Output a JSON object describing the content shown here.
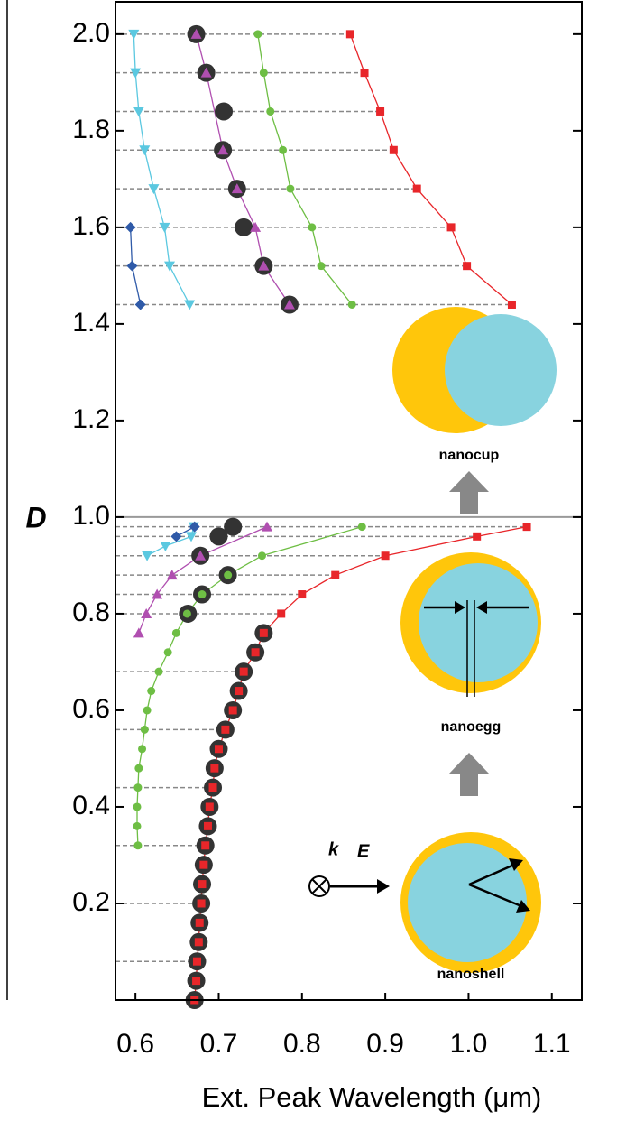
{
  "chart_data": {
    "type": "scatter-line",
    "y_label": "D",
    "x_label": "Ext. Peak Wavelength (μm)",
    "xlim": [
      0.576,
      1.136
    ],
    "ylim": [
      0,
      2.067
    ],
    "xticks": [
      0.6,
      0.7,
      0.8,
      0.9,
      {
        "value": 1,
        "label": "1.0"
      },
      1.1
    ],
    "yticks": [
      0.2,
      0.4,
      0.6,
      0.8,
      {
        "value": 1,
        "label": "1.0"
      },
      1.2,
      1.4,
      1.6,
      1.8,
      {
        "value": 2,
        "label": "2.0"
      }
    ],
    "series": [
      {
        "color": "#333333",
        "marker": "big-circle",
        "line": false,
        "x": [
          0.671,
          0.673,
          0.674,
          0.676,
          0.677,
          0.679,
          0.68,
          0.682,
          0.684,
          0.687,
          0.689,
          0.693,
          0.695,
          0.7,
          0.708,
          0.717,
          0.724,
          0.73,
          0.744,
          0.754,
          0.663,
          0.68,
          0.711,
          0.678,
          0.7,
          0.717,
          null,
          0.785,
          0.754,
          0.73,
          0.722,
          0.705,
          0.706,
          0.685,
          0.673
        ],
        "values": [
          0,
          0.04,
          0.08,
          0.12,
          0.16,
          0.2,
          0.24,
          0.28,
          0.32,
          0.36,
          0.4,
          0.44,
          0.48,
          0.52,
          0.56,
          0.6,
          0.64,
          0.68,
          0.72,
          0.76,
          0.8,
          0.84,
          0.88,
          0.92,
          0.96,
          0.98,
          null,
          1.44,
          1.52,
          1.6,
          1.68,
          1.76,
          1.84,
          1.92,
          2.0
        ]
      },
      {
        "color": "#e8262a",
        "marker": "square",
        "line": true,
        "x": [
          0.671,
          0.673,
          0.674,
          0.676,
          0.677,
          0.679,
          0.68,
          0.682,
          0.684,
          0.687,
          0.689,
          0.693,
          0.695,
          0.7,
          0.708,
          0.717,
          0.724,
          0.73,
          0.744,
          0.754,
          0.775,
          0.8,
          0.84,
          0.9,
          1.01,
          1.07,
          null,
          1.052,
          0.998,
          0.979,
          0.938,
          0.91,
          0.894,
          0.875,
          0.858
        ],
        "values": [
          0,
          0.04,
          0.08,
          0.12,
          0.16,
          0.2,
          0.24,
          0.28,
          0.32,
          0.36,
          0.4,
          0.44,
          0.48,
          0.52,
          0.56,
          0.6,
          0.64,
          0.68,
          0.72,
          0.76,
          0.8,
          0.84,
          0.88,
          0.92,
          0.96,
          0.98,
          null,
          1.44,
          1.52,
          1.6,
          1.68,
          1.76,
          1.84,
          1.92,
          2.0
        ]
      },
      {
        "color": "#6ebe44",
        "marker": "circle",
        "line": true,
        "x": [
          0.603,
          0.602,
          0.602,
          0.603,
          0.604,
          0.608,
          0.611,
          0.614,
          0.619,
          0.628,
          0.639,
          0.649,
          0.662,
          0.68,
          0.711,
          0.752,
          0.872,
          null,
          0.86,
          0.823,
          0.812,
          0.786,
          0.777,
          0.762,
          0.754,
          0.747
        ],
        "values": [
          0.32,
          0.36,
          0.4,
          0.44,
          0.48,
          0.52,
          0.56,
          0.6,
          0.64,
          0.68,
          0.72,
          0.76,
          0.8,
          0.84,
          0.88,
          0.92,
          0.98,
          null,
          1.44,
          1.52,
          1.6,
          1.68,
          1.76,
          1.84,
          1.92,
          2.0
        ]
      },
      {
        "color": "#b04fb0",
        "marker": "triangle-up",
        "line": true,
        "x": [
          0.604,
          0.613,
          0.626,
          0.644,
          0.678,
          0.758,
          null,
          0.785,
          0.754,
          0.744,
          0.722,
          0.705,
          0.685,
          0.673
        ],
        "values": [
          0.76,
          0.8,
          0.84,
          0.88,
          0.92,
          0.98,
          null,
          1.44,
          1.52,
          1.6,
          1.68,
          1.76,
          1.92,
          2.0
        ]
      },
      {
        "color": "#5bc8e0",
        "marker": "triangle-down",
        "line": true,
        "x": [
          0.614,
          0.636,
          0.667,
          0.67,
          null,
          0.665,
          0.641,
          0.635,
          0.622,
          0.611,
          0.604,
          0.6,
          0.598
        ],
        "values": [
          0.92,
          0.94,
          0.96,
          0.98,
          null,
          1.44,
          1.52,
          1.6,
          1.68,
          1.76,
          1.84,
          1.92,
          2.0
        ]
      },
      {
        "color": "#2f5aa8",
        "marker": "diamond",
        "line": true,
        "x": [
          0.649,
          0.671,
          null,
          0.606,
          0.596,
          0.594
        ],
        "values": [
          0.96,
          0.98,
          null,
          1.44,
          1.52,
          1.6
        ]
      }
    ],
    "annotations": {
      "nanocup": "nanocup",
      "nanoegg": "nanoegg",
      "nanoshell": "nanoshell",
      "k": "k",
      "E": "E"
    }
  }
}
